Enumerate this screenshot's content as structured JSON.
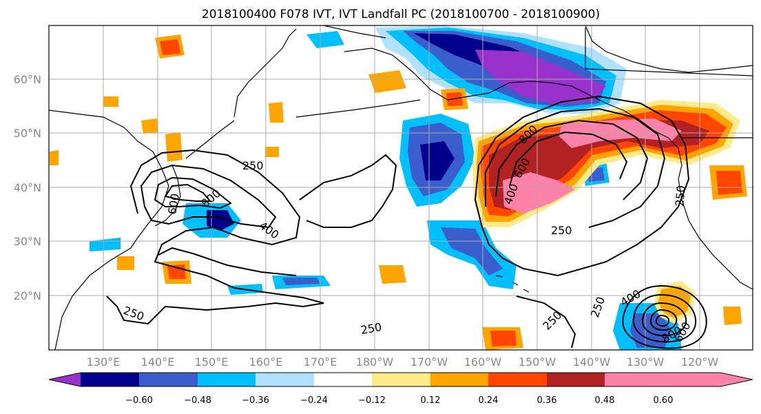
{
  "title": "2018100400 F078 IVT, IVT Landfall PC (2018100700 - 2018100900)",
  "lat_labels": [
    "60°N",
    "50°N",
    "40°N",
    "30°N",
    "20°N"
  ],
  "lon_labels": [
    "130°E",
    "140°E",
    "150°E",
    "160°E",
    "170°E",
    "180°W",
    "170°W",
    "160°W",
    "150°W",
    "140°W",
    "130°W",
    "120°W"
  ],
  "contour_labels": [
    "250",
    "800",
    "400",
    "600",
    "250",
    "800",
    "600",
    "400",
    "250",
    "250",
    "250",
    "250",
    "250",
    "400",
    "800",
    "600"
  ],
  "colorbar": {
    "ticks": [
      "−0.60",
      "−0.48",
      "−0.36",
      "−0.24",
      "−0.12",
      "0.12",
      "0.24",
      "0.36",
      "0.48",
      "0.60"
    ],
    "colors": [
      "#9932cc",
      "#00008b",
      "#3a5fcd",
      "#00bfff",
      "#b0e2ff",
      "#ffffff",
      "#ffeb8a",
      "#ffa500",
      "#ff4500",
      "#b22222",
      "#ff82ab"
    ]
  }
}
